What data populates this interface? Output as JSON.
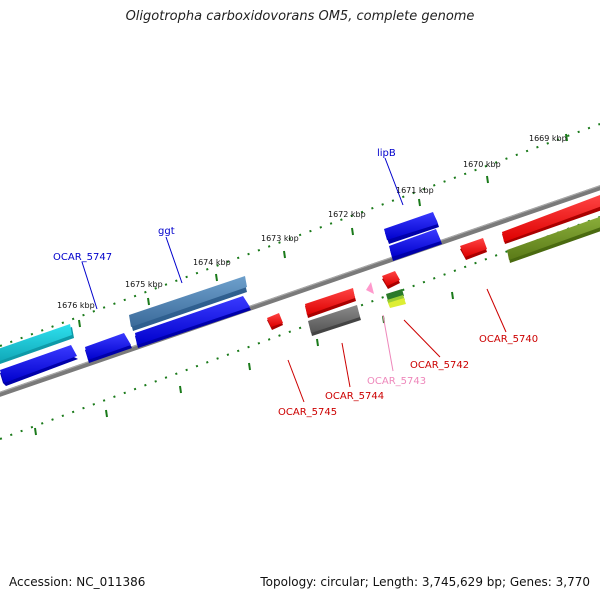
{
  "title": "Oligotropha carboxidovorans OM5, complete genome",
  "footer": {
    "accession": "Accession: NC_011386",
    "summary": "Topology: circular; Length: 3,745,629 bp; Genes: 3,770"
  },
  "scale_labels": [
    "1669 kbp",
    "1670 kbp",
    "1671 kbp",
    "1672 kbp",
    "1673 kbp",
    "1674 kbp",
    "1675 kbp",
    "1676 kbp"
  ],
  "gene_labels": {
    "lipB": "lipB",
    "ggt": "ggt",
    "ocar5747": "OCAR_5747",
    "ocar5740": "OCAR_5740",
    "ocar5742": "OCAR_5742",
    "ocar5743": "OCAR_5743",
    "ocar5744": "OCAR_5744",
    "ocar5745": "OCAR_5745"
  },
  "colors": {
    "backbone": "#808080",
    "ticks": "#1a7a1a",
    "forward_cds": "#0000ee",
    "reverse_cds": "#ee1111",
    "teal": "#1fbfcf",
    "steel": "#4a7fb0",
    "olive": "#6b8e23",
    "gray_gene": "#666666",
    "pink": "#ff99cc",
    "label_blue": "#0000cc",
    "label_red": "#cc0000",
    "label_pink": "#ee88bb"
  }
}
